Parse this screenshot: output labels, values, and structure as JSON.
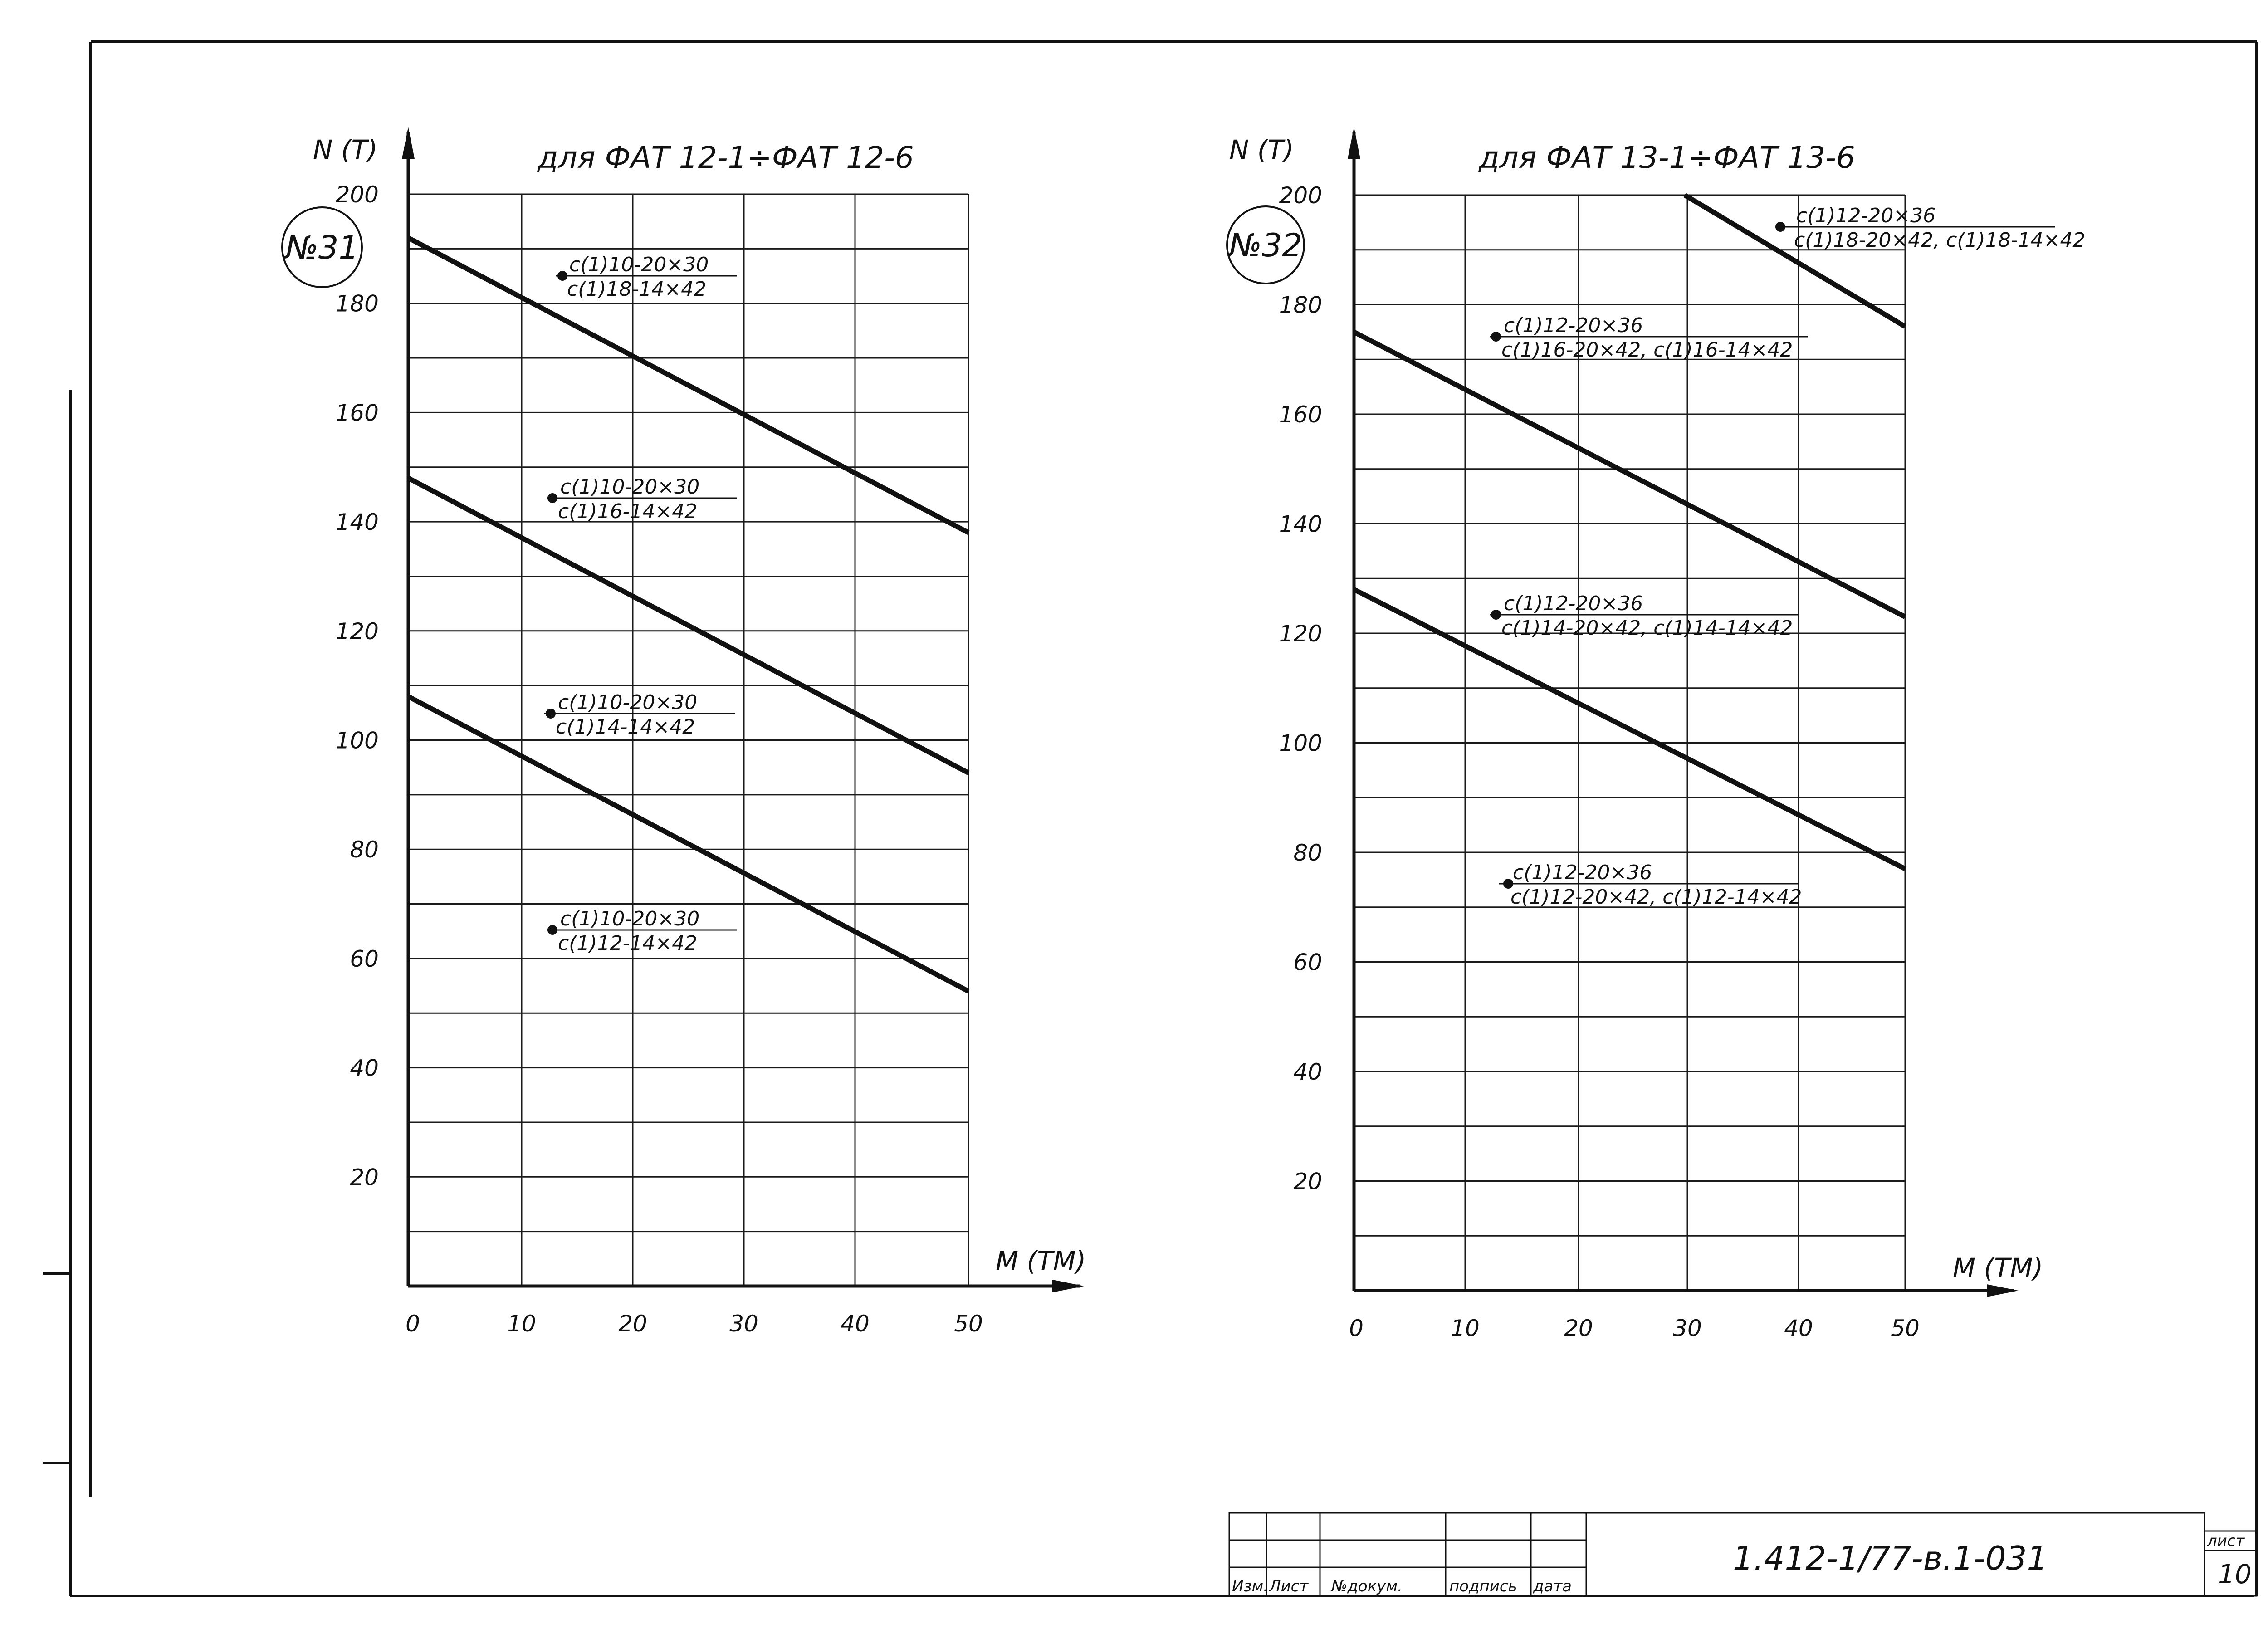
{
  "chart_data": [
    {
      "type": "line",
      "title": "для ФАТ 12-1÷ФАТ 12-6",
      "badge": "№31",
      "xlabel": "М (ТМ)",
      "ylabel": "N (Т)",
      "xlim": [
        0,
        50
      ],
      "ylim": [
        0,
        200
      ],
      "x_ticks": [
        "0",
        "10",
        "20",
        "30",
        "40",
        "50"
      ],
      "y_ticks": [
        "20",
        "40",
        "60",
        "80",
        "100",
        "120",
        "140",
        "160",
        "180",
        "200"
      ],
      "grid": true,
      "series": [
        {
          "top": "c(1)10-20×30",
          "bottom": "c(1)18-14×42",
          "x": [
            0,
            50
          ],
          "y": [
            192,
            138
          ]
        },
        {
          "top": "c(1)10-20×30",
          "bottom": "c(1)16-14×42",
          "x": [
            0,
            50
          ],
          "y": [
            148,
            94
          ]
        },
        {
          "top": "c(1)10-20×30",
          "bottom": "c(1)14-14×42",
          "x": [
            0,
            50
          ],
          "y": [
            108,
            54
          ]
        },
        {
          "top": "c(1)10-20×30",
          "bottom": "c(1)12-14×42",
          "x": [],
          "y": []
        }
      ]
    },
    {
      "type": "line",
      "title": "для ФАТ 13-1÷ФАТ 13-6",
      "badge": "№32",
      "xlabel": "М (ТМ)",
      "ylabel": "N (Т)",
      "xlim": [
        0,
        50
      ],
      "ylim": [
        0,
        200
      ],
      "x_ticks": [
        "0",
        "10",
        "20",
        "30",
        "40",
        "50"
      ],
      "y_ticks": [
        "20",
        "40",
        "60",
        "80",
        "100",
        "120",
        "140",
        "160",
        "180",
        "200"
      ],
      "grid": true,
      "series": [
        {
          "top": "c(1)12-20×36",
          "bottom": "c(1)18-20×42, c(1)18-14×42",
          "x": [
            30,
            50
          ],
          "y": [
            200,
            176
          ]
        },
        {
          "top": "c(1)12-20×36",
          "bottom": "c(1)16-20×42, c(1)16-14×42",
          "x": [
            0,
            50
          ],
          "y": [
            175,
            123
          ]
        },
        {
          "top": "c(1)12-20×36",
          "bottom": "c(1)14-20×42, c(1)14-14×42",
          "x": [
            0,
            50
          ],
          "y": [
            128,
            77
          ]
        },
        {
          "top": "c(1)12-20×36",
          "bottom": "c(1)12-20×42, c(1)12-14×42",
          "x": [],
          "y": []
        }
      ]
    }
  ],
  "title_block": {
    "designation": "1.412-1/77-в.1-031",
    "sheet_label": "лист",
    "sheet_number": "10",
    "columns": [
      "Изм.",
      "Лист",
      "№докум.",
      "подпись",
      "дата"
    ]
  }
}
